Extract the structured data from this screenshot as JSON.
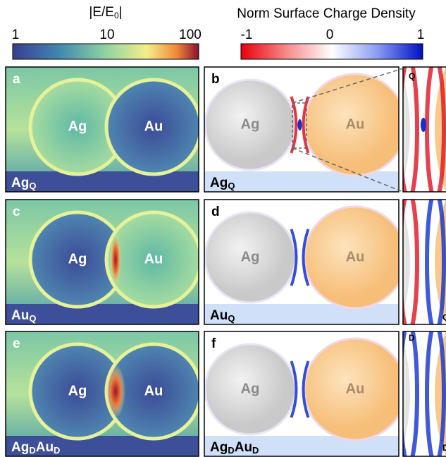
{
  "colorbars": [
    {
      "title": {
        "text": "|E/E",
        "sub": "0",
        "end": "|"
      },
      "ticks": [
        "1",
        "10",
        "100"
      ]
    },
    {
      "title": "Norm Surface Charge Density",
      "ticks": [
        "-1",
        "0",
        "1"
      ]
    }
  ],
  "panels": [
    {
      "letter": "a",
      "left": "Ag",
      "right": "Au",
      "tag": [
        {
          "base": "Ag",
          "sub": "Q"
        }
      ]
    },
    {
      "letter": "b",
      "left": "Ag",
      "right": "Au",
      "tag": [
        {
          "base": "Ag",
          "sub": "Q"
        }
      ]
    },
    {
      "letter": "c",
      "left": "Ag",
      "right": "Au",
      "tag": [
        {
          "base": "Au",
          "sub": "Q"
        }
      ]
    },
    {
      "letter": "d",
      "left": "Ag",
      "right": "Au",
      "tag": [
        {
          "base": "Au",
          "sub": "Q"
        }
      ]
    },
    {
      "letter": "e",
      "left": "Ag",
      "right": "Au",
      "tag": [
        {
          "base": "Ag",
          "sub": "D"
        },
        {
          "base": "Au",
          "sub": "D"
        }
      ]
    },
    {
      "letter": "f",
      "left": "Ag",
      "right": "Au",
      "tag": [
        {
          "base": "Ag",
          "sub": "D"
        },
        {
          "base": "Au",
          "sub": "D"
        }
      ]
    }
  ],
  "insets": [
    "Q",
    "Q",
    "D",
    "D"
  ]
}
